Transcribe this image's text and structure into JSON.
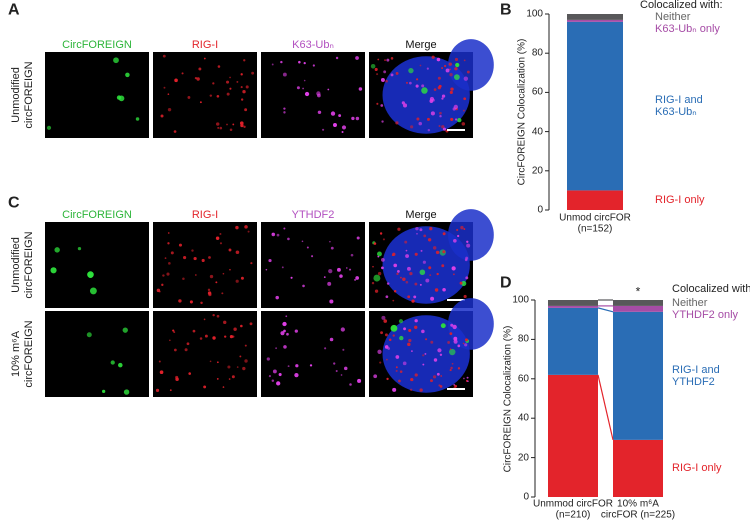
{
  "panels": [
    {
      "letter": "A",
      "columns": [
        "CircFOREIGN",
        "RIG-I",
        "K63-Ubₙ",
        "Merge"
      ],
      "rows": [
        [
          "Unmodified",
          "circFOREIGN"
        ]
      ]
    },
    {
      "letter": "C",
      "columns": [
        "CircFOREIGN",
        "RIG-I",
        "YTHDF2",
        "Merge"
      ],
      "rows": [
        [
          "Unmodified",
          "circFOREIGN"
        ],
        [
          "10% m⁶A",
          "circFOREIGN"
        ]
      ]
    }
  ],
  "chart_data": [
    {
      "panel_letter": "B",
      "type": "stacked_bar",
      "ylabel": "CircFOREIGN Colocalization (%)",
      "legend_title": "Colocalized with:",
      "categories": [
        [
          "Unmod circFOR",
          "(n=152)"
        ]
      ],
      "series": [
        {
          "name": "RIG-I only",
          "color": "#e3242b",
          "values": [
            10
          ]
        },
        {
          "name": "RIG-I and K63-Ubₙ",
          "color": "#2a6db5",
          "values": [
            86
          ]
        },
        {
          "name": "K63-Ubₙ only",
          "color": "#a64ca6",
          "values": [
            1
          ]
        },
        {
          "name": "Neither",
          "color": "#58585a",
          "values": [
            3
          ]
        }
      ],
      "ylim": [
        0,
        100
      ],
      "yticks": [
        0,
        20,
        40,
        60,
        80,
        100
      ],
      "connectors": false
    },
    {
      "panel_letter": "D",
      "type": "stacked_bar",
      "ylabel": "CircFOREIGN Colocalization (%)",
      "legend_title": "Colocalized with:",
      "categories": [
        [
          "Unmmod circFOR",
          "(n=210)"
        ],
        [
          "10% m⁶A",
          "circFOR (n=225)"
        ]
      ],
      "series": [
        {
          "name": "RIG-I only",
          "color": "#e3242b",
          "values": [
            62,
            29
          ]
        },
        {
          "name": "RIG-I and YTHDF2",
          "color": "#2a6db5",
          "values": [
            34,
            65
          ]
        },
        {
          "name": "YTHDF2 only",
          "color": "#a64ca6",
          "values": [
            1,
            3
          ]
        },
        {
          "name": "Neither",
          "color": "#58585a",
          "values": [
            3,
            3
          ]
        }
      ],
      "ylim": [
        0,
        100
      ],
      "yticks": [
        0,
        20,
        40,
        60,
        80,
        100
      ],
      "connectors": true,
      "annotation": "*"
    }
  ]
}
